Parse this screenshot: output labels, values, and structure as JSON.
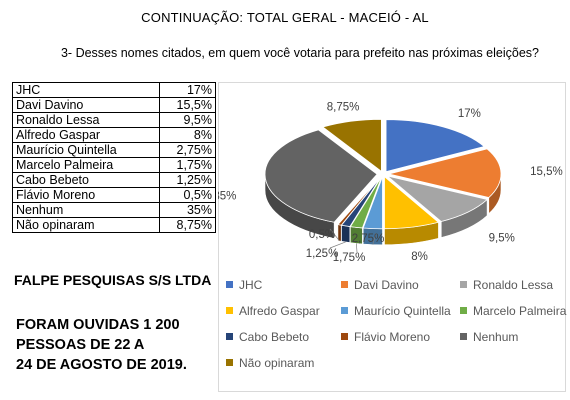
{
  "header": {
    "title": "CONTINUAÇÃO: TOTAL GERAL - MACEIÓ - AL",
    "question": "3- Desses nomes citados, em quem você votaria para prefeito nas próximas eleições?"
  },
  "footer": {
    "company": "FALPE PESQUISAS S/S LTDA",
    "note": "FORAM OUVIDAS 1 200\nPESSOAS DE 22 A\n24 DE AGOSTO DE 2019."
  },
  "table": {
    "rows": [
      {
        "name": "JHC",
        "value": "17%"
      },
      {
        "name": "Davi Davino",
        "value": "15,5%"
      },
      {
        "name": "Ronaldo Lessa",
        "value": "9,5%"
      },
      {
        "name": "Alfredo Gaspar",
        "value": "8%"
      },
      {
        "name": "Maurício Quintella",
        "value": "2,75%"
      },
      {
        "name": "Marcelo Palmeira",
        "value": "1,75%"
      },
      {
        "name": "Cabo Bebeto",
        "value": "1,25%"
      },
      {
        "name": "Flávio Moreno",
        "value": "0,5%"
      },
      {
        "name": "Nenhum",
        "value": "35%"
      },
      {
        "name": "Não opinaram",
        "value": "8,75%"
      }
    ]
  },
  "chart_data": {
    "type": "pie",
    "categories": [
      "JHC",
      "Davi Davino",
      "Ronaldo Lessa",
      "Alfredo Gaspar",
      "Maurício Quintella",
      "Marcelo Palmeira",
      "Cabo Bebeto",
      "Flávio Moreno",
      "Nenhum",
      "Não opinaram"
    ],
    "values": [
      17,
      15.5,
      9.5,
      8,
      2.75,
      1.75,
      1.25,
      0.5,
      35,
      8.75
    ],
    "data_labels": [
      "17%",
      "15,5%",
      "9,5%",
      "8%",
      "2,75%",
      "1,75%",
      "1,25%",
      "0,5%",
      "35%",
      "8,75%"
    ],
    "colors": [
      "#4472c4",
      "#ed7d31",
      "#a5a5a5",
      "#ffc000",
      "#5b9bd5",
      "#70ad47",
      "#264478",
      "#9e480e",
      "#636363",
      "#997300"
    ],
    "style": "3d-exploded",
    "legend_position": "bottom"
  }
}
